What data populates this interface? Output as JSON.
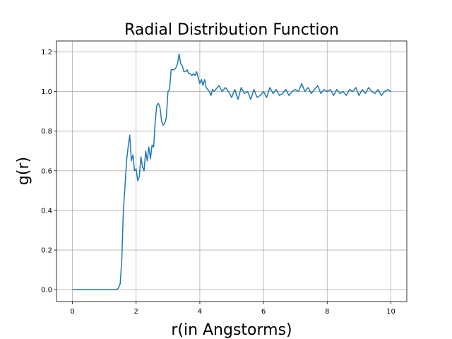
{
  "chart_data": {
    "type": "line",
    "title": "Radial Distribution Function",
    "xlabel": "r(in Angstorms)",
    "ylabel": "g(r)",
    "color": "#1f77b4",
    "grid": true,
    "xlim": [
      -0.5,
      10.5
    ],
    "ylim": [
      -0.06,
      1.255
    ],
    "xticks": [
      0,
      2,
      4,
      6,
      8,
      10
    ],
    "yticks": [
      {
        "value": 0,
        "label": "0.0"
      },
      {
        "value": 0.2,
        "label": "0.2"
      },
      {
        "value": 0.4,
        "label": "0.4"
      },
      {
        "value": 0.6,
        "label": "0.6"
      },
      {
        "value": 0.8,
        "label": "0.8"
      },
      {
        "value": 1.0,
        "label": "1.0"
      },
      {
        "value": 1.2,
        "label": "1.2"
      }
    ],
    "x": [
      0,
      0.1,
      0.2,
      0.3,
      0.4,
      0.5,
      0.6,
      0.7,
      0.8,
      0.9,
      1.0,
      1.1,
      1.2,
      1.3,
      1.4,
      1.45,
      1.5,
      1.55,
      1.6,
      1.65,
      1.7,
      1.75,
      1.8,
      1.85,
      1.9,
      1.95,
      2.0,
      2.05,
      2.1,
      2.15,
      2.2,
      2.25,
      2.3,
      2.35,
      2.4,
      2.45,
      2.5,
      2.55,
      2.6,
      2.65,
      2.7,
      2.75,
      2.8,
      2.85,
      2.9,
      2.95,
      3.0,
      3.05,
      3.1,
      3.15,
      3.2,
      3.25,
      3.3,
      3.35,
      3.4,
      3.45,
      3.5,
      3.55,
      3.6,
      3.65,
      3.7,
      3.75,
      3.8,
      3.85,
      3.9,
      3.95,
      4.0,
      4.05,
      4.1,
      4.15,
      4.2,
      4.25,
      4.3,
      4.35,
      4.4,
      4.45,
      4.5,
      4.6,
      4.7,
      4.8,
      4.9,
      5.0,
      5.1,
      5.2,
      5.3,
      5.4,
      5.5,
      5.6,
      5.7,
      5.8,
      5.9,
      6.0,
      6.1,
      6.2,
      6.3,
      6.4,
      6.5,
      6.6,
      6.7,
      6.8,
      6.9,
      7.0,
      7.1,
      7.2,
      7.3,
      7.4,
      7.5,
      7.6,
      7.7,
      7.8,
      7.9,
      8.0,
      8.1,
      8.2,
      8.3,
      8.4,
      8.5,
      8.6,
      8.7,
      8.8,
      8.9,
      9.0,
      9.1,
      9.2,
      9.3,
      9.4,
      9.5,
      9.6,
      9.7,
      9.8,
      9.9,
      10.0
    ],
    "values": [
      0,
      0,
      0,
      0,
      0,
      0,
      0,
      0,
      0,
      0,
      0,
      0,
      0,
      0,
      0,
      0.01,
      0.03,
      0.15,
      0.4,
      0.52,
      0.65,
      0.72,
      0.78,
      0.65,
      0.68,
      0.6,
      0.61,
      0.55,
      0.57,
      0.67,
      0.62,
      0.6,
      0.7,
      0.65,
      0.72,
      0.66,
      0.73,
      0.72,
      0.85,
      0.93,
      0.94,
      0.92,
      0.85,
      0.83,
      0.84,
      0.87,
      1.0,
      1.01,
      1.11,
      1.11,
      1.11,
      1.12,
      1.14,
      1.19,
      1.14,
      1.13,
      1.1,
      1.1,
      1.11,
      1.09,
      1.09,
      1.08,
      1.09,
      1.08,
      1.1,
      1.07,
      1.04,
      1.06,
      1.03,
      1.06,
      1.02,
      1.01,
      1.0,
      0.98,
      1.01,
      1.0,
      1.01,
      1.03,
      1.0,
      1.02,
      1.0,
      0.97,
      1.01,
      0.96,
      1.02,
      0.99,
      1.0,
      0.96,
      1.01,
      0.97,
      0.98,
      1.0,
      0.97,
      1.02,
      0.99,
      1.01,
      0.98,
      0.99,
      1.01,
      0.98,
      1.0,
      1.01,
      1.0,
      1.04,
      1.0,
      1.02,
      0.99,
      1.01,
      1.03,
      0.99,
      1.01,
      1.0,
      1.01,
      0.98,
      1.01,
      0.99,
      1.0,
      0.98,
      1.01,
      1.0,
      1.02,
      0.98,
      1.01,
      0.99,
      1.02,
      1.0,
      0.99,
      1.01,
      0.98,
      1.0,
      1.01,
      1.0
    ]
  }
}
